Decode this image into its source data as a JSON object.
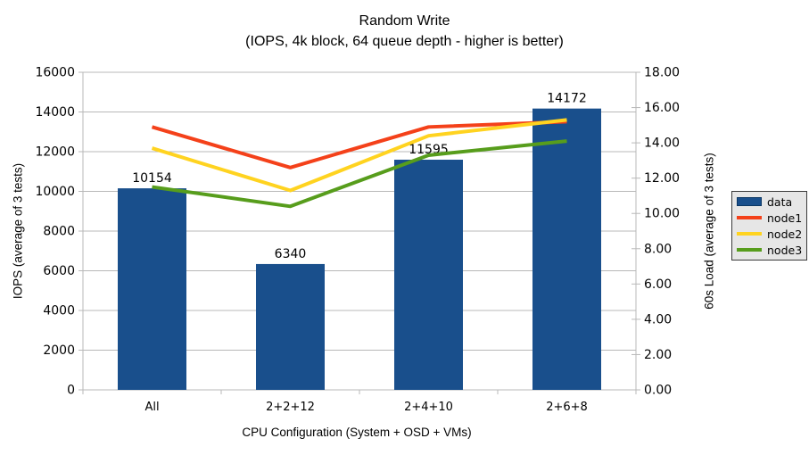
{
  "title": {
    "line1": "Random Write",
    "line2": "(IOPS, 4k block, 64 queue depth - higher is better)"
  },
  "chart_data": {
    "type": "bar+line",
    "categories": [
      "All",
      "2+2+12",
      "2+4+10",
      "2+6+8"
    ],
    "xlabel": "CPU Configuration (System + OSD + VMs)",
    "left_axis": {
      "label": "IOPS (average of 3 tests)",
      "min": 0,
      "max": 16000,
      "step": 2000
    },
    "right_axis": {
      "label": "60s Load (average of 3 tests)",
      "min": 0,
      "max": 18,
      "step": 2,
      "decimals": 2
    },
    "series": [
      {
        "name": "data",
        "type": "bar",
        "axis": "left",
        "color": "#194F8C",
        "values": [
          10154,
          6340,
          11595,
          14172
        ],
        "show_labels": true
      },
      {
        "name": "node1",
        "type": "line",
        "axis": "right",
        "color": "#F4411A",
        "values": [
          14.9,
          12.6,
          14.9,
          15.2
        ]
      },
      {
        "name": "node2",
        "type": "line",
        "axis": "right",
        "color": "#FFD320",
        "values": [
          13.7,
          11.3,
          14.4,
          15.3
        ]
      },
      {
        "name": "node3",
        "type": "line",
        "axis": "right",
        "color": "#579D1C",
        "values": [
          11.5,
          10.4,
          13.3,
          14.1
        ]
      }
    ],
    "legend": {
      "position": "right",
      "entries": [
        "data",
        "node1",
        "node2",
        "node3"
      ]
    },
    "grid": "horizontal-on",
    "colors": {
      "axis": "#b8b8b8",
      "text": "#000000",
      "legend_bg": "#e6e6e6",
      "legend_border": "#3a3a3a"
    }
  }
}
